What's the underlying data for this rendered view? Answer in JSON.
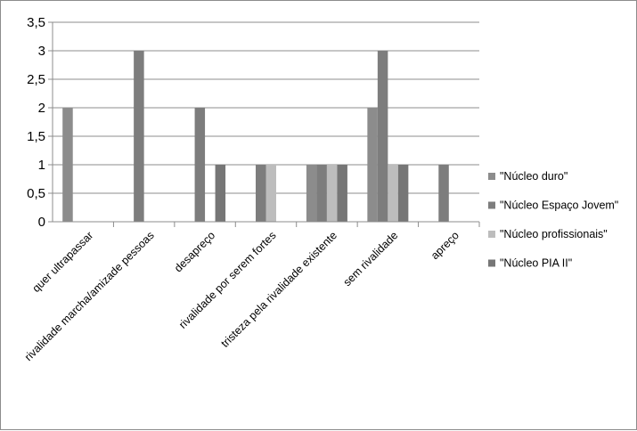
{
  "chart_data": {
    "type": "bar",
    "title": "",
    "xlabel": "",
    "ylabel": "",
    "ylim": [
      0,
      3.5
    ],
    "y_ticks": [
      "0",
      "0,5",
      "1",
      "1,5",
      "2",
      "2,5",
      "3",
      "3,5"
    ],
    "grid": true,
    "legend_position": "right",
    "categories": [
      "quer ultrapassar",
      "rivalidade marcha/amizade pessoas",
      "desapreço",
      "rivalidade por serem fortes",
      "tristeza pela rivalidade existente",
      "sem rivalidade",
      "apreço"
    ],
    "series": [
      {
        "name": "\"Núcleo duro\"",
        "color": "#8c8c8c",
        "values": [
          2,
          0,
          0,
          0,
          1,
          2,
          0
        ]
      },
      {
        "name": "\"Núcleo Espaço Jovem\"",
        "color": "#7d7d7d",
        "values": [
          0,
          3,
          2,
          1,
          1,
          3,
          1
        ]
      },
      {
        "name": "\"Núcleo profissionais\"",
        "color": "#bdbdbd",
        "values": [
          0,
          0,
          0,
          1,
          1,
          1,
          0
        ]
      },
      {
        "name": "\"Núcleo PIA II\"",
        "color": "#767676",
        "values": [
          0,
          0,
          1,
          0,
          1,
          1,
          0
        ]
      }
    ]
  }
}
